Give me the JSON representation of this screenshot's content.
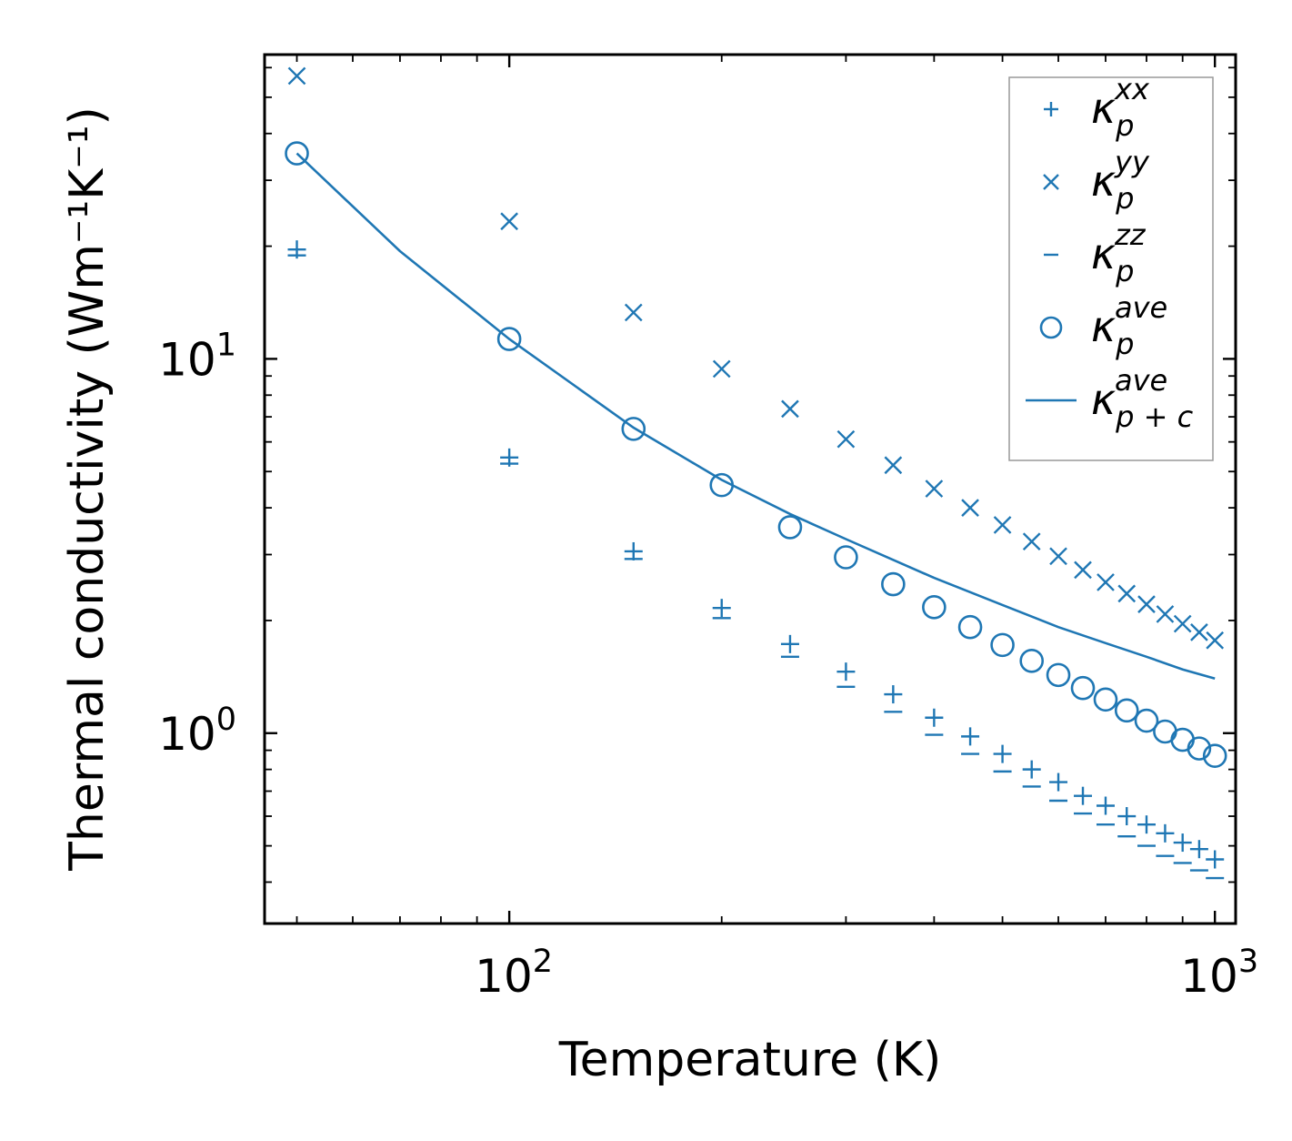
{
  "chart_data": {
    "type": "scatter",
    "xscale": "log",
    "yscale": "log",
    "xlabel": "Temperature (K)",
    "ylabel": "Thermal conductivity (Wm⁻¹K⁻¹)",
    "xlim": [
      45,
      1070
    ],
    "ylim": [
      0.31,
      65
    ],
    "x_ticks": [
      {
        "value": 100,
        "base": "10",
        "exp": "2"
      },
      {
        "value": 1000,
        "base": "10",
        "exp": "3"
      }
    ],
    "y_ticks": [
      {
        "value": 1,
        "base": "10",
        "exp": "0"
      },
      {
        "value": 10,
        "base": "10",
        "exp": "1"
      }
    ],
    "color": "#1f77b4",
    "x": [
      50,
      100,
      150,
      200,
      250,
      300,
      350,
      400,
      450,
      500,
      550,
      600,
      650,
      700,
      750,
      800,
      850,
      900,
      950,
      1000
    ],
    "series": [
      {
        "name": "κ_p^xx",
        "symbol": "kappa",
        "sub": "p",
        "sup": "xx",
        "marker": "plus",
        "values": [
          19.6,
          5.45,
          3.06,
          2.16,
          1.73,
          1.46,
          1.27,
          1.1,
          0.98,
          0.88,
          0.8,
          0.74,
          0.68,
          0.64,
          0.6,
          0.57,
          0.54,
          0.51,
          0.49,
          0.46
        ]
      },
      {
        "name": "κ_p^yy",
        "symbol": "kappa",
        "sub": "p",
        "sup": "yy",
        "marker": "x",
        "values": [
          57,
          23.3,
          13.3,
          9.4,
          7.35,
          6.1,
          5.2,
          4.5,
          4.0,
          3.6,
          3.25,
          2.97,
          2.73,
          2.53,
          2.36,
          2.21,
          2.08,
          1.96,
          1.86,
          1.77
        ]
      },
      {
        "name": "κ_p^zz",
        "symbol": "kappa",
        "sub": "p",
        "sup": "zz",
        "marker": "hline",
        "values": [
          18.9,
          5.25,
          2.92,
          2.03,
          1.6,
          1.33,
          1.14,
          0.99,
          0.88,
          0.79,
          0.72,
          0.66,
          0.61,
          0.57,
          0.53,
          0.5,
          0.47,
          0.45,
          0.43,
          0.41
        ]
      },
      {
        "name": "κ_p^ave",
        "symbol": "kappa",
        "sub": "p",
        "sup": "ave",
        "marker": "circle",
        "values": [
          35.4,
          11.3,
          6.5,
          4.6,
          3.55,
          2.95,
          2.5,
          2.17,
          1.92,
          1.72,
          1.56,
          1.43,
          1.32,
          1.23,
          1.15,
          1.08,
          1.01,
          0.96,
          0.91,
          0.87
        ]
      },
      {
        "name": "κ_p+c^ave",
        "symbol": "kappa",
        "sub": "p + c",
        "sup": "ave",
        "marker": "line",
        "x": [
          50,
          70,
          100,
          150,
          200,
          250,
          300,
          400,
          500,
          600,
          700,
          800,
          900,
          1000
        ],
        "values": [
          35.4,
          19.4,
          11.3,
          6.55,
          4.75,
          3.85,
          3.3,
          2.6,
          2.2,
          1.92,
          1.74,
          1.6,
          1.48,
          1.4
        ]
      }
    ],
    "legend": "top-right",
    "grid": false
  }
}
